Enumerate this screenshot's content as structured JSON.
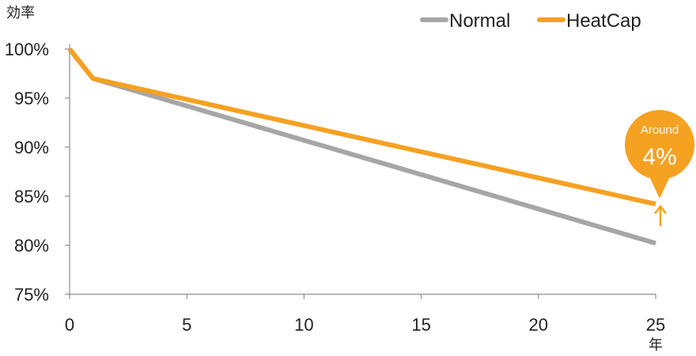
{
  "chart_data": {
    "type": "line",
    "ylabel": "効率",
    "xlabel": "年",
    "x": [
      0,
      1,
      25
    ],
    "xlim": [
      0,
      25
    ],
    "xticks": [
      "0",
      "5",
      "10",
      "15",
      "20",
      "25"
    ],
    "ylim": [
      75,
      100
    ],
    "yticks": [
      "75%",
      "80%",
      "85%",
      "90%",
      "95%",
      "100%"
    ],
    "grid": false,
    "legend_position": "top-right",
    "series": [
      {
        "name": "Normal",
        "color": "#a6a6a6",
        "values": [
          100,
          97,
          80.2
        ]
      },
      {
        "name": "HeatCap",
        "color": "#f5a122",
        "values": [
          100,
          97,
          84.2
        ]
      }
    ],
    "annotation": {
      "line1": "Around",
      "line2": "4%",
      "color": "#f5a122"
    }
  }
}
